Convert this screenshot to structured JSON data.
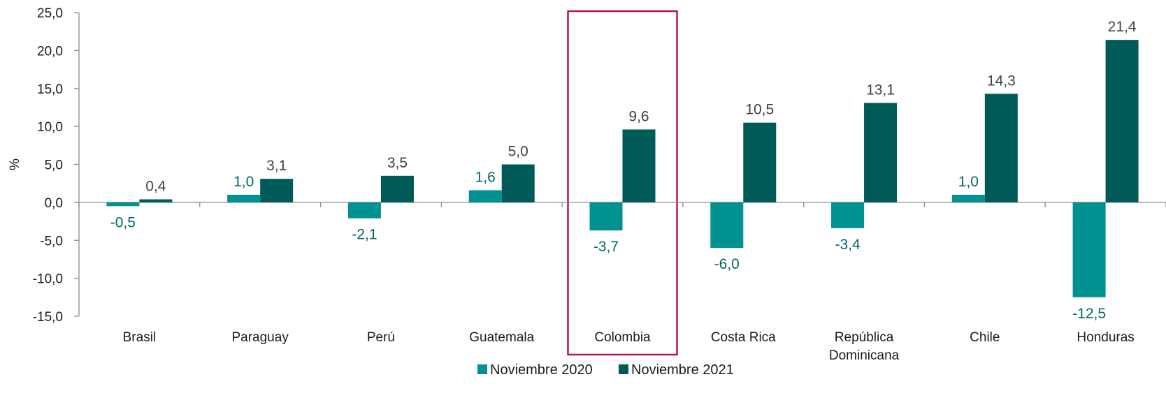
{
  "chart_data": {
    "type": "bar",
    "categories": [
      [
        "Brasil"
      ],
      [
        "Paraguay"
      ],
      [
        "Perú"
      ],
      [
        "Guatemala"
      ],
      [
        "Colombia"
      ],
      [
        "Costa Rica"
      ],
      [
        "República",
        "Dominicana"
      ],
      [
        "Chile"
      ],
      [
        "Honduras"
      ]
    ],
    "series": [
      {
        "name": "Noviembre 2020",
        "color": "#009191",
        "label_color": "#006767",
        "values": [
          -0.5,
          1.0,
          -2.1,
          1.6,
          -3.7,
          -6.0,
          -3.4,
          1.0,
          -12.5
        ],
        "labels": [
          "-0,5",
          "1,0",
          "-2,1",
          "1,6",
          "-3,7",
          "-6,0",
          "-3,4",
          "1,0",
          "-12,5"
        ]
      },
      {
        "name": "Noviembre 2021",
        "color": "#005a57",
        "label_color": "#404040",
        "values": [
          0.4,
          3.1,
          3.5,
          5.0,
          9.6,
          10.5,
          13.1,
          14.3,
          21.4
        ],
        "labels": [
          "0,4",
          "3,1",
          "3,5",
          "5,0",
          "9,6",
          "10,5",
          "13,1",
          "14,3",
          "21,4"
        ]
      }
    ],
    "ylabel": "%",
    "ylim": [
      -15,
      25
    ],
    "yticks": [
      25,
      20,
      15,
      10,
      5,
      0,
      -5,
      -10,
      -15
    ],
    "ytick_labels": [
      "25,0",
      "20,0",
      "15,0",
      "10,0",
      "5,0",
      "0,0",
      "-5,0",
      "-10,0",
      "-15,0"
    ],
    "grid": false,
    "legend_position": "bottom",
    "highlight": {
      "category": "Colombia",
      "color": "#b5174f"
    }
  }
}
